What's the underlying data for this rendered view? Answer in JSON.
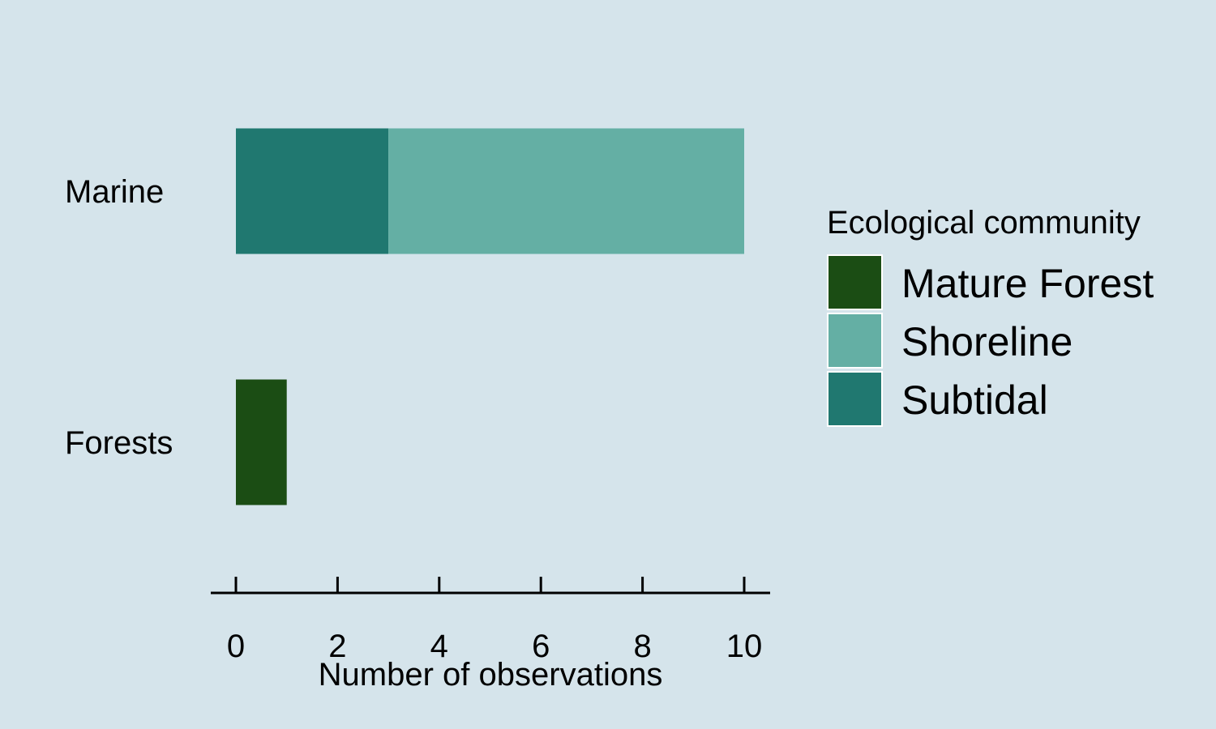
{
  "chart_data": {
    "type": "bar",
    "orientation": "horizontal",
    "stacked": true,
    "categories": [
      "Marine",
      "Forests"
    ],
    "series": [
      {
        "name": "Mature Forest",
        "color": "#1b4d14",
        "values": [
          0,
          1
        ]
      },
      {
        "name": "Shoreline",
        "color": "#64afa4",
        "values": [
          7,
          0
        ]
      },
      {
        "name": "Subtidal",
        "color": "#207870",
        "values": [
          3,
          0
        ]
      }
    ],
    "stack_order": [
      "Subtidal",
      "Shoreline",
      "Mature Forest"
    ],
    "xlabel": "Number of observations",
    "ylabel": "",
    "xlim": [
      0,
      10
    ],
    "xticks": [
      0,
      2,
      4,
      6,
      8,
      10
    ],
    "grid": false,
    "legend": {
      "title": "Ecological community",
      "placement": "right"
    },
    "background_color": "#d5e4eb"
  }
}
